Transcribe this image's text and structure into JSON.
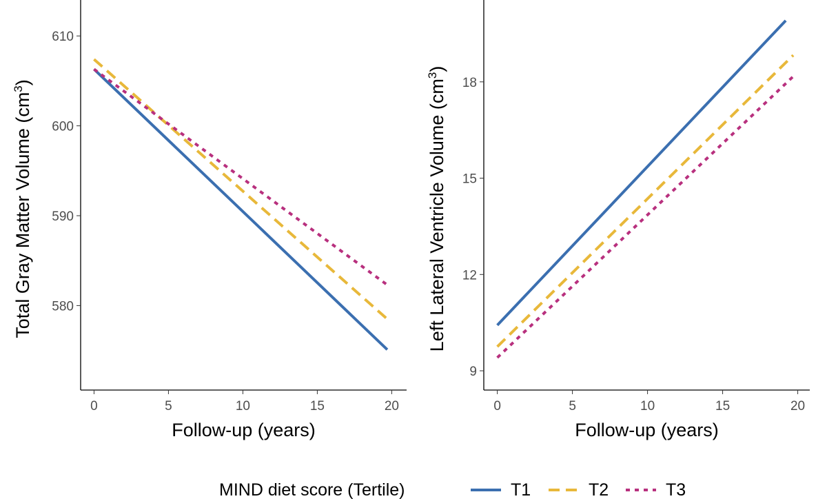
{
  "chart_data": [
    {
      "type": "line",
      "xlabel": "Follow-up (years)",
      "ylabel": "Total Gray Matter Volume (cm",
      "ylabel_sup": "3",
      "ylabel_end": ")",
      "xlim": [
        -0.9,
        21
      ],
      "ylim": [
        570.6,
        614
      ],
      "xticks": [
        0,
        5,
        10,
        15,
        20
      ],
      "yticks": [
        580,
        590,
        600,
        610
      ],
      "grid": false,
      "series": [
        {
          "name": "T1",
          "x": [
            0,
            19.7
          ],
          "y": [
            606.3,
            575.1
          ]
        },
        {
          "name": "T2",
          "x": [
            0,
            19.7
          ],
          "y": [
            607.4,
            578.5
          ]
        },
        {
          "name": "T3",
          "x": [
            0,
            19.7
          ],
          "y": [
            606.3,
            582.3
          ]
        }
      ]
    },
    {
      "type": "line",
      "xlabel": "Follow-up (years)",
      "ylabel": "Left Lateral Ventricle Volume (cm",
      "ylabel_sup": "3",
      "ylabel_end": ")",
      "xlim": [
        -0.9,
        20.8
      ],
      "ylim": [
        8.4,
        20.55
      ],
      "xticks": [
        0,
        5,
        10,
        15,
        20
      ],
      "yticks": [
        9,
        12,
        15,
        18
      ],
      "grid": false,
      "series": [
        {
          "name": "T1",
          "x": [
            0,
            19.2
          ],
          "y": [
            10.42,
            19.91
          ]
        },
        {
          "name": "T2",
          "x": [
            0,
            19.7
          ],
          "y": [
            9.75,
            18.83
          ]
        },
        {
          "name": "T3",
          "x": [
            0,
            19.7
          ],
          "y": [
            9.41,
            18.17
          ]
        }
      ]
    }
  ],
  "legend": {
    "title": "MIND diet score (Tertile)",
    "position": "bottom",
    "entries": [
      {
        "label": "T1",
        "color": "#3b6fb0",
        "dash": "solid"
      },
      {
        "label": "T2",
        "color": "#e8b83a",
        "dash": "dashed"
      },
      {
        "label": "T3",
        "color": "#b8307e",
        "dash": "dotted"
      }
    ]
  }
}
